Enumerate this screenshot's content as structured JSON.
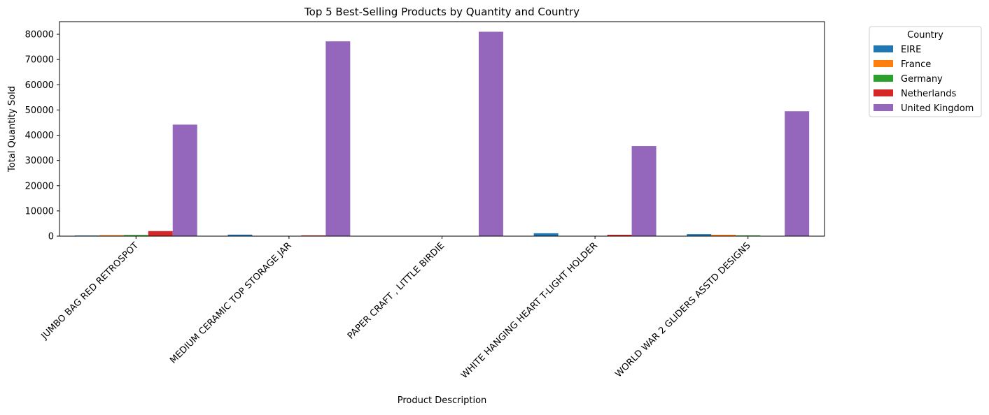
{
  "chart_data": {
    "type": "bar",
    "title": "Top 5 Best-Selling Products by Quantity and Country",
    "xlabel": "Product Description",
    "ylabel": "Total Quantity Sold",
    "ylim": [
      0,
      85000
    ],
    "yticks": [
      0,
      10000,
      20000,
      30000,
      40000,
      50000,
      60000,
      70000,
      80000
    ],
    "ytick_labels": [
      "0",
      "10000",
      "20000",
      "30000",
      "40000",
      "50000",
      "60000",
      "70000",
      "80000"
    ],
    "categories": [
      "JUMBO BAG RED RETROSPOT",
      "MEDIUM CERAMIC TOP STORAGE JAR",
      "PAPER CRAFT , LITTLE BIRDIE",
      "WHITE HANGING HEART T-LIGHT HOLDER",
      "WORLD WAR 2 GLIDERS ASSTD DESIGNS"
    ],
    "legend": {
      "title": "Country",
      "placement": "outside-right-top"
    },
    "grid": false,
    "series": [
      {
        "name": "EIRE",
        "color": "#1f77b4",
        "values": [
          250,
          600,
          0,
          1150,
          800
        ]
      },
      {
        "name": "France",
        "color": "#ff7f0e",
        "values": [
          400,
          0,
          0,
          0,
          550
        ]
      },
      {
        "name": "Germany",
        "color": "#2ca02c",
        "values": [
          450,
          0,
          0,
          0,
          300
        ]
      },
      {
        "name": "Netherlands",
        "color": "#d62728",
        "values": [
          2000,
          300,
          0,
          550,
          0
        ]
      },
      {
        "name": "United Kingdom",
        "color": "#9467bd",
        "values": [
          44200,
          77200,
          81000,
          35700,
          49500
        ]
      }
    ]
  }
}
